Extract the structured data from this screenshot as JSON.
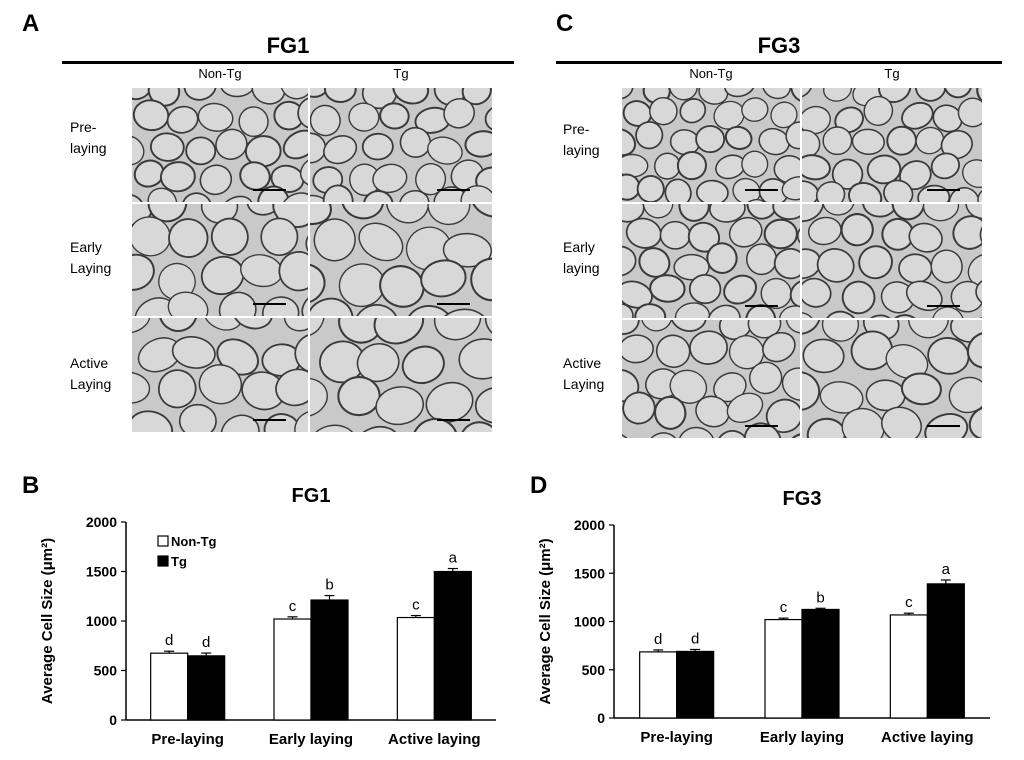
{
  "micrograph_panels": [
    {
      "letter": "A",
      "title": "FG1",
      "columns": [
        "Non-Tg",
        "Tg"
      ],
      "rows": [
        "Pre-\nlaying",
        "Early\nLaying",
        "Active\nLaying"
      ]
    },
    {
      "letter": "C",
      "title": "FG3",
      "columns": [
        "Non-Tg",
        "Tg"
      ],
      "rows": [
        "Pre-\nlaying",
        "Early\nlaying",
        "Active\nLaying"
      ]
    }
  ],
  "colors": {
    "tissue_background": "#c9c9c9",
    "cell_fill": "#d8d8d8",
    "cell_wall": "#3a3a3a",
    "nontg_bar": "#ffffff",
    "tg_bar": "#000000"
  },
  "chart_data": [
    {
      "letter": "B",
      "type": "bar",
      "title": "FG1",
      "ylabel": "Average Cell Size (μm²)",
      "ylim": [
        0,
        2000
      ],
      "yticks": [
        0,
        500,
        1000,
        1500,
        2000
      ],
      "categories": [
        "Pre-laying",
        "Early laying",
        "Active laying"
      ],
      "legend_position": "top-left",
      "series": [
        {
          "name": "Non-Tg",
          "values": [
            675,
            1020,
            1035
          ],
          "errors": [
            20,
            22,
            20
          ],
          "labels": [
            "d",
            "c",
            "c"
          ]
        },
        {
          "name": "Tg",
          "values": [
            648,
            1212,
            1500
          ],
          "errors": [
            28,
            45,
            30
          ],
          "labels": [
            "d",
            "b",
            "a"
          ]
        }
      ]
    },
    {
      "letter": "D",
      "type": "bar",
      "title": "FG3",
      "ylabel": "Average Cell Size (μm²)",
      "ylim": [
        0,
        2000
      ],
      "yticks": [
        0,
        500,
        1000,
        1500,
        2000
      ],
      "categories": [
        "Pre-laying",
        "Early laying",
        "Active laying"
      ],
      "series": [
        {
          "name": "Non-Tg",
          "values": [
            685,
            1020,
            1068
          ],
          "errors": [
            20,
            15,
            18
          ],
          "labels": [
            "d",
            "c",
            "c"
          ]
        },
        {
          "name": "Tg",
          "values": [
            690,
            1125,
            1390
          ],
          "errors": [
            20,
            12,
            40
          ],
          "labels": [
            "d",
            "b",
            "a"
          ]
        }
      ]
    }
  ]
}
